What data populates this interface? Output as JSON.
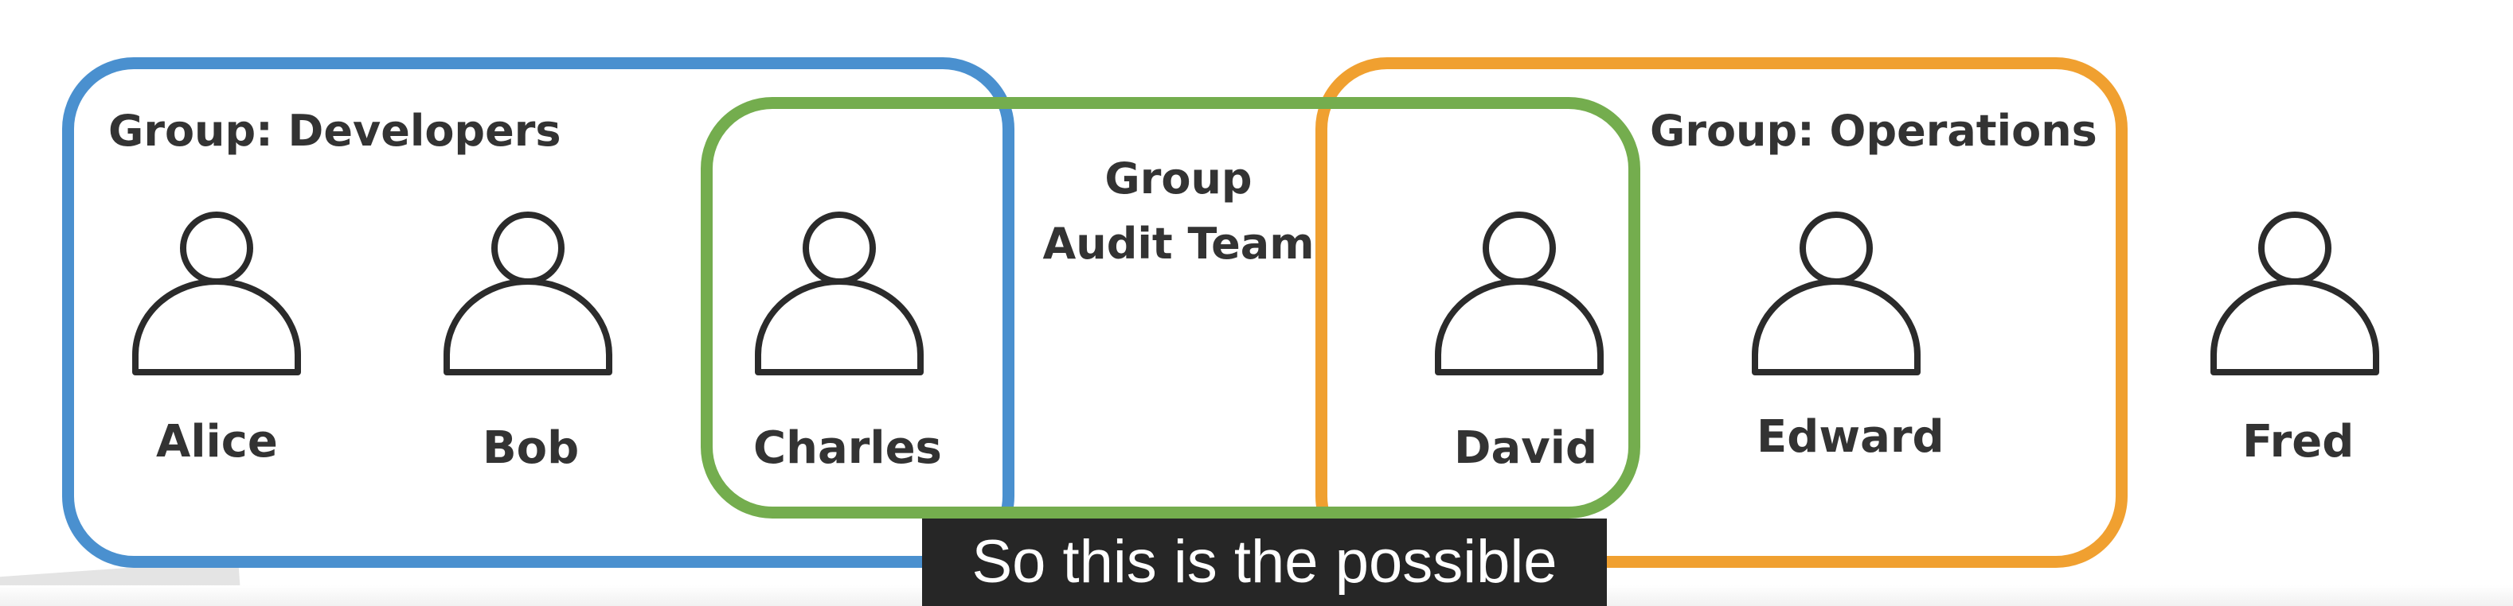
{
  "colors": {
    "developers": "#4a90cf",
    "operations": "#f0a030",
    "audit": "#74ad4e",
    "person_stroke": "#2b2b2b",
    "text": "#333333",
    "caption_bg": "#262626",
    "caption_text": "#ffffff"
  },
  "groups": {
    "developers": {
      "label": "Group: Developers"
    },
    "operations": {
      "label": "Group: Operations"
    },
    "audit": {
      "label": "Group Audit Team"
    }
  },
  "users": [
    {
      "name": "Alice",
      "icon": "person-icon"
    },
    {
      "name": "Bob",
      "icon": "person-icon"
    },
    {
      "name": "Charles",
      "icon": "person-icon"
    },
    {
      "name": "David",
      "icon": "person-icon"
    },
    {
      "name": "Edward",
      "icon": "person-icon"
    },
    {
      "name": "Fred",
      "icon": "person-icon"
    }
  ],
  "caption": {
    "text": "So this is the possible"
  }
}
